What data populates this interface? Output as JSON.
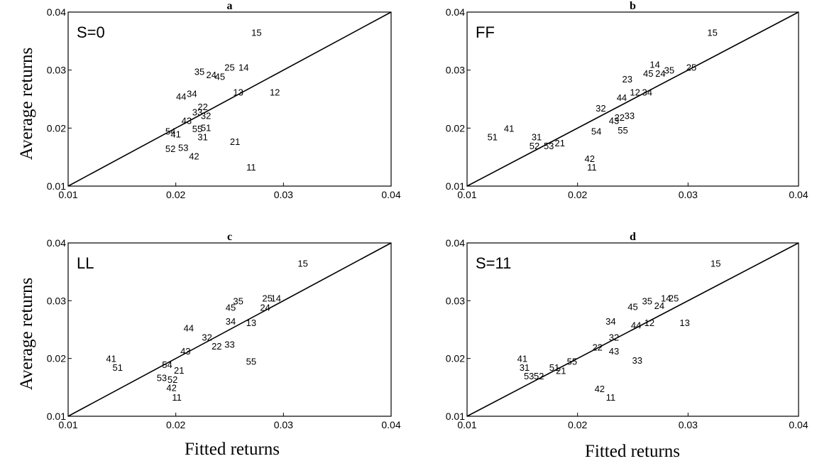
{
  "xlabel": "Fitted returns",
  "ylabel": "Average returns",
  "chart_data": [
    {
      "type": "scatter",
      "title": "a",
      "model_label": "S=0",
      "xlim": [
        0.01,
        0.04
      ],
      "ylim": [
        0.01,
        0.04
      ],
      "xticks": [
        "0.01",
        "0.02",
        "0.03",
        "0.04"
      ],
      "yticks": [
        "0.01",
        "0.02",
        "0.03",
        "0.04"
      ],
      "reference_line": "45-degree",
      "points": [
        {
          "label": "15",
          "x": 0.0275,
          "y": 0.0365
        },
        {
          "label": "25",
          "x": 0.025,
          "y": 0.0305
        },
        {
          "label": "14",
          "x": 0.0263,
          "y": 0.0305
        },
        {
          "label": "35",
          "x": 0.0222,
          "y": 0.0298
        },
        {
          "label": "24",
          "x": 0.0233,
          "y": 0.0292
        },
        {
          "label": "45",
          "x": 0.0241,
          "y": 0.0289
        },
        {
          "label": "13",
          "x": 0.0258,
          "y": 0.0262
        },
        {
          "label": "12",
          "x": 0.0292,
          "y": 0.0262
        },
        {
          "label": "44",
          "x": 0.0205,
          "y": 0.0255
        },
        {
          "label": "34",
          "x": 0.0215,
          "y": 0.026
        },
        {
          "label": "22",
          "x": 0.0225,
          "y": 0.0237
        },
        {
          "label": "33",
          "x": 0.022,
          "y": 0.0228
        },
        {
          "label": "32",
          "x": 0.0228,
          "y": 0.0222
        },
        {
          "label": "43",
          "x": 0.021,
          "y": 0.0213
        },
        {
          "label": "55",
          "x": 0.022,
          "y": 0.0199
        },
        {
          "label": "51",
          "x": 0.0228,
          "y": 0.0201
        },
        {
          "label": "54",
          "x": 0.0195,
          "y": 0.0195
        },
        {
          "label": "41",
          "x": 0.02,
          "y": 0.019
        },
        {
          "label": "31",
          "x": 0.0225,
          "y": 0.0185
        },
        {
          "label": "21",
          "x": 0.0255,
          "y": 0.0177
        },
        {
          "label": "52",
          "x": 0.0195,
          "y": 0.0165
        },
        {
          "label": "53",
          "x": 0.0207,
          "y": 0.0167
        },
        {
          "label": "42",
          "x": 0.0217,
          "y": 0.0152
        },
        {
          "label": "11",
          "x": 0.027,
          "y": 0.0133
        }
      ]
    },
    {
      "type": "scatter",
      "title": "b",
      "model_label": "FF",
      "xlim": [
        0.01,
        0.04
      ],
      "ylim": [
        0.01,
        0.04
      ],
      "xticks": [
        "0.01",
        "0.02",
        "0.03",
        "0.04"
      ],
      "yticks": [
        "0.01",
        "0.02",
        "0.03",
        "0.04"
      ],
      "reference_line": "45-degree",
      "points": [
        {
          "label": "15",
          "x": 0.0322,
          "y": 0.0365
        },
        {
          "label": "14",
          "x": 0.027,
          "y": 0.031
        },
        {
          "label": "25",
          "x": 0.0303,
          "y": 0.0305
        },
        {
          "label": "45",
          "x": 0.0264,
          "y": 0.0295
        },
        {
          "label": "24",
          "x": 0.0275,
          "y": 0.0295
        },
        {
          "label": "35",
          "x": 0.0283,
          "y": 0.03
        },
        {
          "label": "23",
          "x": 0.0245,
          "y": 0.0285
        },
        {
          "label": "12",
          "x": 0.0252,
          "y": 0.0262
        },
        {
          "label": "34",
          "x": 0.0263,
          "y": 0.0262
        },
        {
          "label": "44",
          "x": 0.024,
          "y": 0.0253
        },
        {
          "label": "32",
          "x": 0.0221,
          "y": 0.0235
        },
        {
          "label": "33",
          "x": 0.0247,
          "y": 0.0222
        },
        {
          "label": "22",
          "x": 0.0238,
          "y": 0.0219
        },
        {
          "label": "43",
          "x": 0.0233,
          "y": 0.0213
        },
        {
          "label": "55",
          "x": 0.0241,
          "y": 0.0197
        },
        {
          "label": "54",
          "x": 0.0217,
          "y": 0.0195
        },
        {
          "label": "41",
          "x": 0.0138,
          "y": 0.02
        },
        {
          "label": "51",
          "x": 0.0123,
          "y": 0.0185
        },
        {
          "label": "31",
          "x": 0.0163,
          "y": 0.0185
        },
        {
          "label": "52",
          "x": 0.0161,
          "y": 0.017
        },
        {
          "label": "53",
          "x": 0.0174,
          "y": 0.017
        },
        {
          "label": "21",
          "x": 0.0184,
          "y": 0.0175
        },
        {
          "label": "42",
          "x": 0.0211,
          "y": 0.0148
        },
        {
          "label": "11",
          "x": 0.0213,
          "y": 0.0133
        }
      ]
    },
    {
      "type": "scatter",
      "title": "c",
      "model_label": "LL",
      "xlim": [
        0.01,
        0.04
      ],
      "ylim": [
        0.01,
        0.04
      ],
      "xticks": [
        "0.01",
        "0.02",
        "0.03",
        "0.04"
      ],
      "yticks": [
        "0.01",
        "0.02",
        "0.03",
        "0.04"
      ],
      "reference_line": "45-degree",
      "points": [
        {
          "label": "15",
          "x": 0.0318,
          "y": 0.0365
        },
        {
          "label": "25",
          "x": 0.0285,
          "y": 0.0305
        },
        {
          "label": "14",
          "x": 0.0293,
          "y": 0.0305
        },
        {
          "label": "35",
          "x": 0.0258,
          "y": 0.03
        },
        {
          "label": "45",
          "x": 0.0251,
          "y": 0.0289
        },
        {
          "label": "24",
          "x": 0.0283,
          "y": 0.0289
        },
        {
          "label": "34",
          "x": 0.0251,
          "y": 0.0265
        },
        {
          "label": "13",
          "x": 0.027,
          "y": 0.0262
        },
        {
          "label": "44",
          "x": 0.0212,
          "y": 0.0253
        },
        {
          "label": "32",
          "x": 0.0229,
          "y": 0.0237
        },
        {
          "label": "22",
          "x": 0.0238,
          "y": 0.0222
        },
        {
          "label": "33",
          "x": 0.025,
          "y": 0.0225
        },
        {
          "label": "43",
          "x": 0.0209,
          "y": 0.0213
        },
        {
          "label": "55",
          "x": 0.027,
          "y": 0.0195
        },
        {
          "label": "54",
          "x": 0.0192,
          "y": 0.019
        },
        {
          "label": "21",
          "x": 0.0203,
          "y": 0.018
        },
        {
          "label": "41",
          "x": 0.014,
          "y": 0.02
        },
        {
          "label": "51",
          "x": 0.0146,
          "y": 0.0185
        },
        {
          "label": "53",
          "x": 0.0187,
          "y": 0.0167
        },
        {
          "label": "52",
          "x": 0.0197,
          "y": 0.0164
        },
        {
          "label": "42",
          "x": 0.0196,
          "y": 0.015
        },
        {
          "label": "11",
          "x": 0.0201,
          "y": 0.0133
        }
      ]
    },
    {
      "type": "scatter",
      "title": "d",
      "model_label": "S=11",
      "xlim": [
        0.01,
        0.04
      ],
      "ylim": [
        0.01,
        0.04
      ],
      "xticks": [
        "0.01",
        "0.02",
        "0.03",
        "0.04"
      ],
      "yticks": [
        "0.01",
        "0.02",
        "0.03",
        "0.04"
      ],
      "reference_line": "45-degree",
      "points": [
        {
          "label": "15",
          "x": 0.0325,
          "y": 0.0365
        },
        {
          "label": "14",
          "x": 0.028,
          "y": 0.0305
        },
        {
          "label": "25",
          "x": 0.0287,
          "y": 0.0305
        },
        {
          "label": "35",
          "x": 0.0263,
          "y": 0.03
        },
        {
          "label": "45",
          "x": 0.025,
          "y": 0.029
        },
        {
          "label": "24",
          "x": 0.0274,
          "y": 0.0292
        },
        {
          "label": "34",
          "x": 0.023,
          "y": 0.0265
        },
        {
          "label": "13",
          "x": 0.0297,
          "y": 0.0262
        },
        {
          "label": "12",
          "x": 0.0265,
          "y": 0.0262
        },
        {
          "label": "44",
          "x": 0.0253,
          "y": 0.0258
        },
        {
          "label": "32",
          "x": 0.0233,
          "y": 0.0237
        },
        {
          "label": "22",
          "x": 0.0218,
          "y": 0.022
        },
        {
          "label": "43",
          "x": 0.0233,
          "y": 0.0213
        },
        {
          "label": "33",
          "x": 0.0254,
          "y": 0.0197
        },
        {
          "label": "55",
          "x": 0.0195,
          "y": 0.0195
        },
        {
          "label": "41",
          "x": 0.015,
          "y": 0.02
        },
        {
          "label": "31",
          "x": 0.0152,
          "y": 0.0185
        },
        {
          "label": "51",
          "x": 0.0179,
          "y": 0.0185
        },
        {
          "label": "21",
          "x": 0.0185,
          "y": 0.0179
        },
        {
          "label": "53",
          "x": 0.0156,
          "y": 0.017
        },
        {
          "label": "52",
          "x": 0.0165,
          "y": 0.017
        },
        {
          "label": "42",
          "x": 0.022,
          "y": 0.0148
        },
        {
          "label": "11",
          "x": 0.023,
          "y": 0.0133
        }
      ]
    }
  ]
}
